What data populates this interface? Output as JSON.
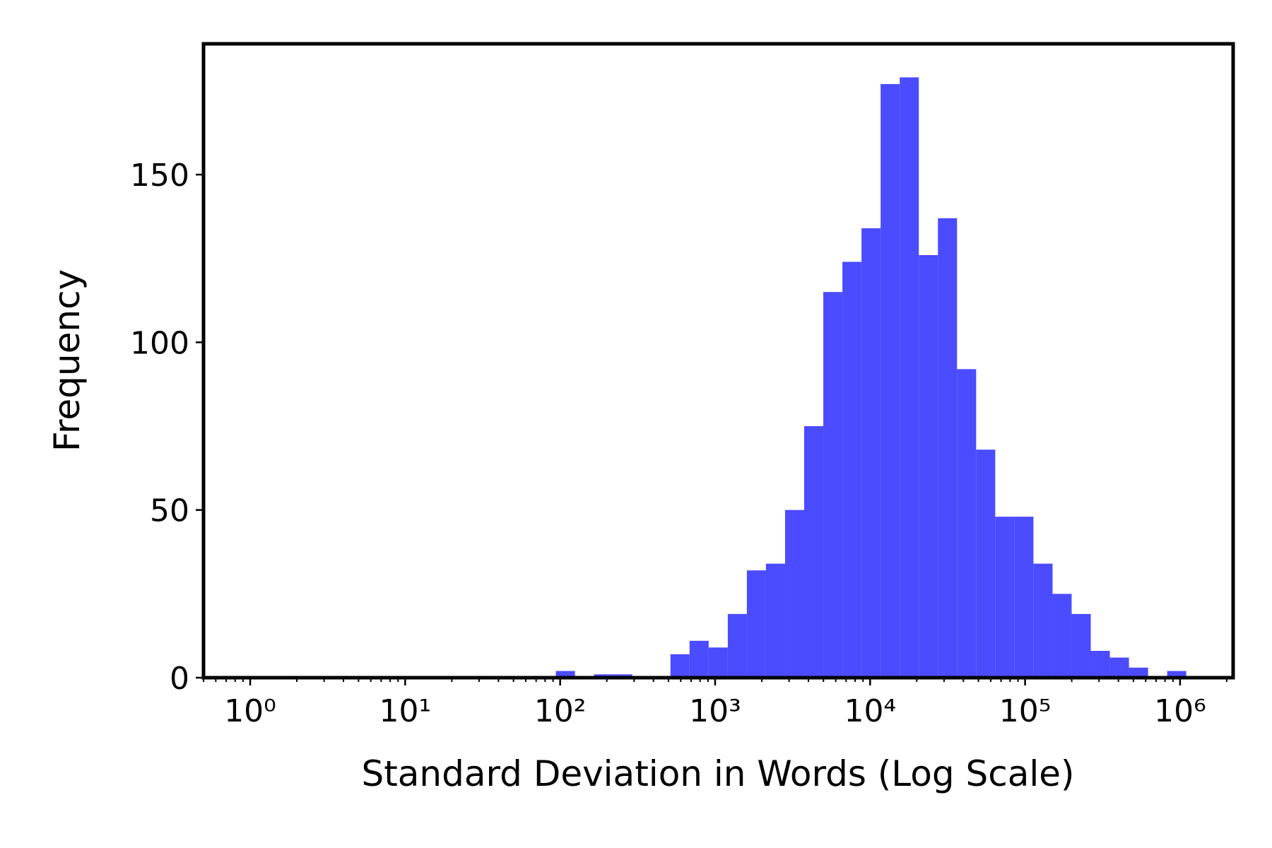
{
  "chart_data": {
    "type": "histogram",
    "x_label": "Standard Deviation in Words (Log Scale)",
    "y_label": "Frequency",
    "color": "#4b4bff",
    "xscale": "log",
    "minor_ticks": true,
    "bins": [
      1,
      1.328,
      1.764,
      2.343,
      3.112,
      4.133,
      5.49,
      7.292,
      9.685,
      12.86,
      17.08,
      22.69,
      30.14,
      40.03,
      53.17,
      70.63,
      93.8,
      124.6,
      165.5,
      219.8,
      292,
      387.8,
      515.1,
      684.2,
      908.8,
      1207,
      1603,
      2129,
      2828,
      3756,
      4989,
      6627,
      8802,
      11690,
      15530,
      20620,
      27390,
      36380,
      48330,
      64190,
      85250,
      113200,
      150400,
      199700,
      265300,
      352400,
      468000,
      621700,
      825700,
      1096000
    ],
    "values": [
      0,
      0,
      0,
      0,
      0,
      0,
      0,
      0,
      0,
      0,
      0,
      0,
      0,
      0,
      0,
      0,
      2,
      0,
      1,
      1,
      0,
      0,
      7,
      11,
      9,
      19,
      32,
      34,
      50,
      75,
      115,
      124,
      134,
      177,
      179,
      126,
      137,
      92,
      68,
      48,
      48,
      34,
      25,
      19,
      8,
      6,
      3,
      0,
      2
    ],
    "xlim": [
      0.5,
      2200000
    ],
    "ylim": [
      0,
      189
    ],
    "xticks": [
      {
        "value": 1,
        "label": "10⁰"
      },
      {
        "value": 10,
        "label": "10¹"
      },
      {
        "value": 100,
        "label": "10²"
      },
      {
        "value": 1000,
        "label": "10³"
      },
      {
        "value": 10000,
        "label": "10⁴"
      },
      {
        "value": 100000,
        "label": "10⁵"
      },
      {
        "value": 1000000,
        "label": "10⁶"
      }
    ],
    "yticks": [
      0,
      50,
      100,
      150
    ]
  }
}
